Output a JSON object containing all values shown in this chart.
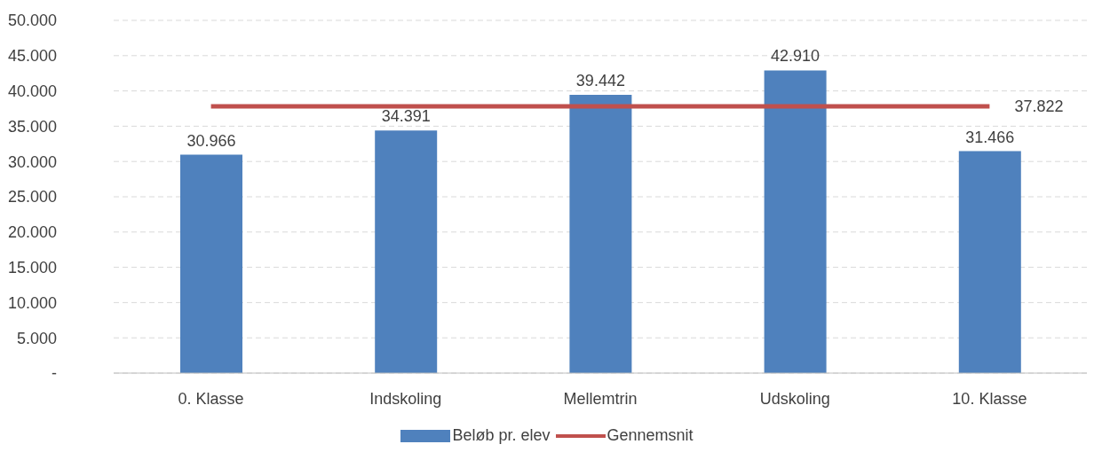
{
  "chart_data": {
    "type": "bar",
    "categories": [
      "0. Klasse",
      "Indskoling",
      "Mellemtrin",
      "Udskoling",
      "10. Klasse"
    ],
    "series": [
      {
        "name": "Beløb pr. elev",
        "color": "#4f81bd",
        "values": [
          30966,
          34391,
          39442,
          42910,
          31466
        ],
        "value_labels": [
          "30.966",
          "34.391",
          "39.442",
          "42.910",
          "31.466"
        ]
      },
      {
        "name": "Gennemsnit",
        "type": "line",
        "color": "#c0504d",
        "values": [
          37822,
          37822,
          37822,
          37822,
          37822
        ],
        "value_labels": [
          null,
          null,
          null,
          null,
          "37.822"
        ]
      }
    ],
    "ylim": [
      0,
      50000
    ],
    "yticks": [
      {
        "value": 0,
        "label": "-"
      },
      {
        "value": 5000,
        "label": "5.000"
      },
      {
        "value": 10000,
        "label": "10.000"
      },
      {
        "value": 15000,
        "label": "15.000"
      },
      {
        "value": 20000,
        "label": "20.000"
      },
      {
        "value": 25000,
        "label": "25.000"
      },
      {
        "value": 30000,
        "label": "30.000"
      },
      {
        "value": 35000,
        "label": "35.000"
      },
      {
        "value": 40000,
        "label": "40.000"
      },
      {
        "value": 45000,
        "label": "45.000"
      },
      {
        "value": 50000,
        "label": "50.000"
      }
    ],
    "grid": "y",
    "legend": "bottom",
    "marker": "none"
  }
}
